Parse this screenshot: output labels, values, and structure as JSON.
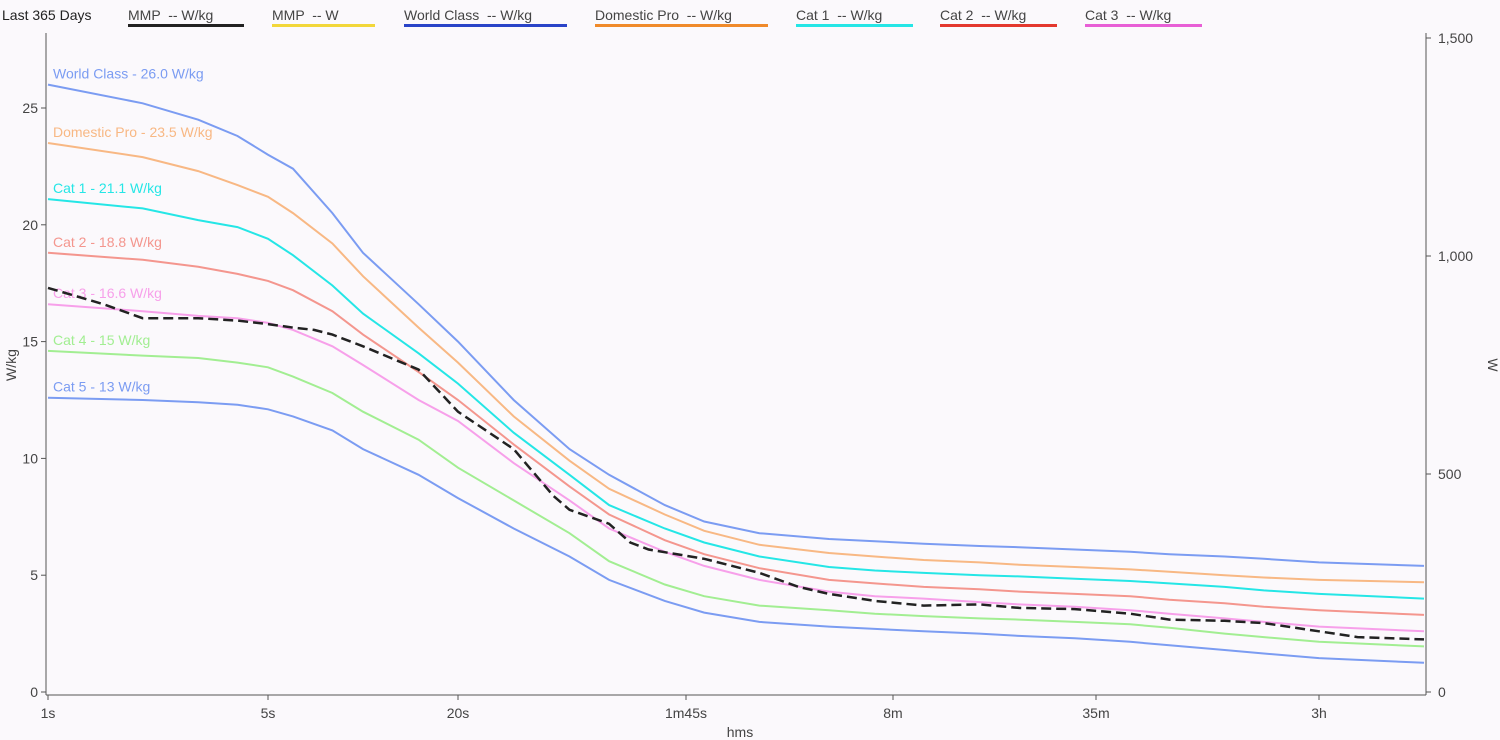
{
  "header": {
    "range_label": "Last 365 Days",
    "legend": [
      {
        "label": "MMP  -- W/kg",
        "color": "#222222"
      },
      {
        "label": "MMP  -- W",
        "color": "#f2d73a"
      },
      {
        "label": "World Class  -- W/kg",
        "color": "#2a44c8"
      },
      {
        "label": "Domestic Pro  -- W/kg",
        "color": "#f08a2a"
      },
      {
        "label": "Cat 1  -- W/kg",
        "color": "#25e6e6"
      },
      {
        "label": "Cat 2  -- W/kg",
        "color": "#e4382e"
      },
      {
        "label": "Cat 3  -- W/kg",
        "color": "#e85fd6"
      }
    ]
  },
  "chart_data": {
    "type": "line",
    "xlabel": "hms",
    "ylabel": "W/kg",
    "y2label": "W",
    "x_ticks": [
      "1s",
      "5s",
      "20s",
      "1m45s",
      "8m",
      "35m",
      "3h"
    ],
    "ylim": [
      0,
      28
    ],
    "y_ticks": [
      0,
      5,
      10,
      15,
      20,
      25
    ],
    "y2lim": [
      0,
      1525
    ],
    "y2_ticks": [
      "0",
      "500",
      "1,000",
      "1,500"
    ],
    "grid": false,
    "series": [
      {
        "name": "World Class",
        "label": "World Class - 26.0 W/kg",
        "color": "#7b9cf2",
        "x": [
          1,
          2,
          3,
          4,
          5,
          6,
          8,
          10,
          15,
          20,
          30,
          45,
          60,
          90,
          120,
          180,
          300,
          420,
          600,
          900,
          1200,
          1800,
          2700,
          3600,
          5400,
          7200,
          10800,
          14400
        ],
        "y": [
          26.0,
          25.2,
          24.5,
          23.8,
          23.0,
          22.4,
          20.5,
          18.8,
          16.6,
          15.0,
          12.5,
          10.4,
          9.3,
          8.0,
          7.3,
          6.8,
          6.55,
          6.45,
          6.35,
          6.25,
          6.2,
          6.1,
          6.0,
          5.9,
          5.8,
          5.7,
          5.55,
          5.4
        ]
      },
      {
        "name": "Domestic Pro",
        "label": "Domestic Pro - 23.5 W/kg",
        "color": "#f8b884",
        "x": [
          1,
          2,
          3,
          4,
          5,
          6,
          8,
          10,
          15,
          20,
          30,
          45,
          60,
          90,
          120,
          180,
          300,
          420,
          600,
          900,
          1200,
          1800,
          2700,
          3600,
          5400,
          7200,
          10800,
          14400
        ],
        "y": [
          23.5,
          22.9,
          22.3,
          21.7,
          21.2,
          20.5,
          19.2,
          17.8,
          15.6,
          14.1,
          11.8,
          9.9,
          8.7,
          7.6,
          6.9,
          6.3,
          5.95,
          5.8,
          5.65,
          5.55,
          5.45,
          5.35,
          5.25,
          5.15,
          5.0,
          4.9,
          4.8,
          4.7
        ]
      },
      {
        "name": "Cat 1",
        "label": "Cat 1 - 21.1 W/kg",
        "color": "#25e6e6",
        "x": [
          1,
          2,
          3,
          4,
          5,
          6,
          8,
          10,
          15,
          20,
          30,
          45,
          60,
          90,
          120,
          180,
          300,
          420,
          600,
          900,
          1200,
          1800,
          2700,
          3600,
          5400,
          7200,
          10800,
          14400
        ],
        "y": [
          21.1,
          20.7,
          20.2,
          19.9,
          19.4,
          18.7,
          17.4,
          16.2,
          14.5,
          13.2,
          11.1,
          9.3,
          8.0,
          7.0,
          6.4,
          5.8,
          5.35,
          5.2,
          5.1,
          5.0,
          4.95,
          4.85,
          4.75,
          4.65,
          4.5,
          4.35,
          4.2,
          4.0
        ]
      },
      {
        "name": "Cat 2",
        "label": "Cat 2 - 18.8 W/kg",
        "color": "#f4968e",
        "x": [
          1,
          2,
          3,
          4,
          5,
          6,
          8,
          10,
          15,
          20,
          30,
          45,
          60,
          90,
          120,
          180,
          300,
          420,
          600,
          900,
          1200,
          1800,
          2700,
          3600,
          5400,
          7200,
          10800,
          14400
        ],
        "y": [
          18.8,
          18.5,
          18.2,
          17.9,
          17.6,
          17.2,
          16.3,
          15.3,
          13.7,
          12.5,
          10.6,
          8.8,
          7.6,
          6.5,
          5.9,
          5.3,
          4.8,
          4.65,
          4.5,
          4.4,
          4.3,
          4.2,
          4.1,
          3.95,
          3.8,
          3.65,
          3.5,
          3.3
        ]
      },
      {
        "name": "Cat 3",
        "label": "Cat 3 - 16.6 W/kg",
        "color": "#f7a0ea",
        "x": [
          1,
          2,
          3,
          4,
          5,
          6,
          8,
          10,
          15,
          20,
          30,
          45,
          60,
          90,
          120,
          180,
          300,
          420,
          600,
          900,
          1200,
          1800,
          2700,
          3600,
          5400,
          7200,
          10800,
          14400
        ],
        "y": [
          16.6,
          16.3,
          16.1,
          16.0,
          15.8,
          15.5,
          14.8,
          14.0,
          12.5,
          11.6,
          9.8,
          8.2,
          7.0,
          6.0,
          5.4,
          4.8,
          4.3,
          4.1,
          4.0,
          3.85,
          3.75,
          3.65,
          3.5,
          3.35,
          3.15,
          3.0,
          2.8,
          2.6
        ]
      },
      {
        "name": "Cat 4",
        "label": "Cat 4 - 15 W/kg",
        "color": "#a2ee92",
        "x": [
          1,
          2,
          3,
          4,
          5,
          6,
          8,
          10,
          15,
          20,
          30,
          45,
          60,
          90,
          120,
          180,
          300,
          420,
          600,
          900,
          1200,
          1800,
          2700,
          3600,
          5400,
          7200,
          10800,
          14400
        ],
        "y": [
          14.6,
          14.4,
          14.3,
          14.1,
          13.9,
          13.5,
          12.8,
          12.0,
          10.8,
          9.6,
          8.2,
          6.8,
          5.6,
          4.6,
          4.1,
          3.7,
          3.5,
          3.35,
          3.25,
          3.15,
          3.1,
          3.0,
          2.9,
          2.75,
          2.5,
          2.35,
          2.15,
          1.95
        ]
      },
      {
        "name": "Cat 5",
        "label": "Cat 5 - 13 W/kg",
        "color": "#7b9cf2",
        "x": [
          1,
          2,
          3,
          4,
          5,
          6,
          8,
          10,
          15,
          20,
          30,
          45,
          60,
          90,
          120,
          180,
          300,
          420,
          600,
          900,
          1200,
          1800,
          2700,
          3600,
          5400,
          7200,
          10800,
          14400
        ],
        "y": [
          12.6,
          12.5,
          12.4,
          12.3,
          12.1,
          11.8,
          11.2,
          10.4,
          9.3,
          8.3,
          7.0,
          5.8,
          4.8,
          3.9,
          3.4,
          3.0,
          2.8,
          2.7,
          2.6,
          2.5,
          2.4,
          2.3,
          2.15,
          2.0,
          1.8,
          1.65,
          1.45,
          1.25
        ]
      },
      {
        "name": "MMP",
        "label": "",
        "color": "#222222",
        "dashed": true,
        "x": [
          1,
          1.5,
          2,
          3,
          4,
          5,
          6,
          7,
          8,
          10,
          15,
          20,
          30,
          40,
          45,
          60,
          70,
          80,
          120,
          180,
          240,
          300,
          420,
          600,
          900,
          1200,
          1800,
          2700,
          3600,
          5400,
          7200,
          10800,
          12000,
          14400
        ],
        "y": [
          17.3,
          16.6,
          16.0,
          16.0,
          15.9,
          15.75,
          15.6,
          15.5,
          15.3,
          14.8,
          13.8,
          12.0,
          10.4,
          8.4,
          7.8,
          7.2,
          6.4,
          6.1,
          5.7,
          5.1,
          4.5,
          4.2,
          3.9,
          3.7,
          3.75,
          3.6,
          3.55,
          3.35,
          3.1,
          3.05,
          2.95,
          2.6,
          2.35,
          2.25
        ]
      }
    ]
  }
}
